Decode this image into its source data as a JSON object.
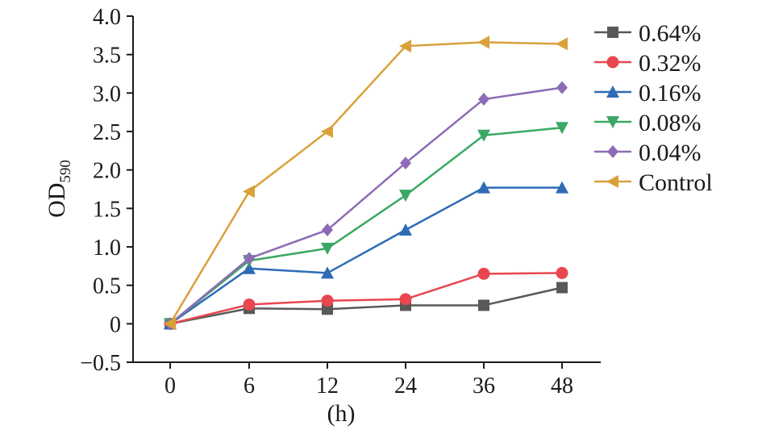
{
  "chart_data": {
    "type": "line",
    "title": "",
    "xlabel": "(h)",
    "ylabel": "OD",
    "ylabel_subscript": "590",
    "categories": [
      "0",
      "6",
      "12",
      "24",
      "36",
      "48"
    ],
    "y_ticks": [
      "−0.5",
      "0",
      "0.5",
      "1.0",
      "1.5",
      "2.0",
      "2.5",
      "3.0",
      "3.5",
      "4.0"
    ],
    "y_tick_values": [
      -0.5,
      0,
      0.5,
      1.0,
      1.5,
      2.0,
      2.5,
      3.0,
      3.5,
      4.0
    ],
    "ylim": [
      -0.5,
      4.0
    ],
    "grid": false,
    "legend_position": "top-right",
    "series": [
      {
        "name": "0.64%",
        "marker": "square",
        "color": "#595959",
        "values": [
          0.0,
          0.2,
          0.19,
          0.24,
          0.24,
          0.47
        ]
      },
      {
        "name": "0.32%",
        "marker": "circle",
        "color": "#e8474f",
        "values": [
          0.0,
          0.25,
          0.3,
          0.32,
          0.65,
          0.66
        ]
      },
      {
        "name": "0.16%",
        "marker": "triangle-up",
        "color": "#2e6cb5",
        "values": [
          0.0,
          0.72,
          0.66,
          1.22,
          1.77,
          1.77
        ]
      },
      {
        "name": "0.08%",
        "marker": "triangle-down",
        "color": "#3aa864",
        "values": [
          0.0,
          0.82,
          0.98,
          1.67,
          2.45,
          2.55
        ]
      },
      {
        "name": "0.04%",
        "marker": "diamond",
        "color": "#8e6bb6",
        "values": [
          0.0,
          0.85,
          1.22,
          2.09,
          2.92,
          3.07
        ]
      },
      {
        "name": "Control",
        "marker": "triangle-left",
        "color": "#d9a13a",
        "values": [
          0.0,
          1.72,
          2.5,
          3.61,
          3.66,
          3.64
        ]
      }
    ]
  }
}
